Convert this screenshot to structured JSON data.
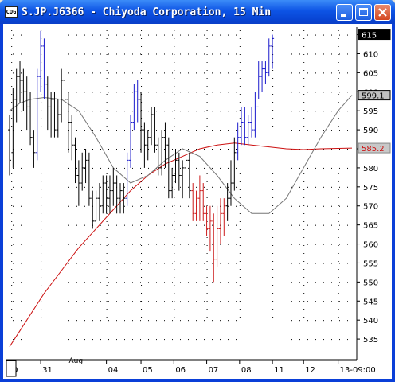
{
  "window": {
    "title": "S.JP.J6366 - Chiyoda Corporation, 15 Min",
    "icon_text": "CQG"
  },
  "colors": {
    "up_bars": "#1a1acc",
    "down_bars": "#cc1a1a",
    "neutral_bars": "#000000",
    "long_ma": "#cc1010",
    "short_ma": "#777777",
    "price_tag_bg": "#000000"
  },
  "chart_data": {
    "type": "line",
    "title": "",
    "xlabel": "",
    "ylabel": "",
    "ylim": [
      530,
      617
    ],
    "grid": true,
    "y_ticks": [
      535,
      540,
      545,
      550,
      555,
      560,
      565,
      570,
      575,
      580,
      585,
      590,
      595,
      600,
      605,
      610,
      615
    ],
    "x_ticks": [
      "0",
      "31",
      "04",
      "05",
      "06",
      "07",
      "08",
      "11",
      "12",
      "13-09:00"
    ],
    "x_tick_pos": [
      0.5,
      9,
      28,
      38,
      47.5,
      57,
      66.5,
      76,
      85,
      95
    ],
    "month_label": {
      "text": "Aug",
      "x": 19
    },
    "n_bars": 100,
    "price_tags": [
      {
        "label": "615",
        "value": 615,
        "style": "dark"
      },
      {
        "label": "599.1",
        "value": 599.1,
        "style": "gray"
      },
      {
        "label": "585.2",
        "value": 585.2,
        "style": "red"
      }
    ],
    "series": [
      {
        "name": "",
        "type": "ohlc",
        "values": [
          [
            0,
            590,
            588,
            594,
            578,
            582
          ],
          [
            1,
            584,
            582,
            601,
            580,
            598
          ],
          [
            2,
            598,
            594,
            606,
            592,
            604
          ],
          [
            3,
            604,
            600,
            608,
            597,
            603
          ],
          [
            4,
            603,
            599,
            606,
            595,
            600
          ],
          [
            5,
            600,
            594,
            604,
            590,
            596
          ],
          [
            6,
            596,
            590,
            600,
            586,
            588
          ],
          [
            7,
            588,
            582,
            590,
            580,
            584
          ],
          [
            8,
            584,
            590,
            606,
            582,
            604
          ],
          [
            9,
            604,
            604,
            616,
            600,
            612
          ],
          [
            10,
            612,
            600,
            614,
            598,
            602
          ],
          [
            11,
            602,
            592,
            604,
            590,
            596
          ],
          [
            12,
            596,
            592,
            600,
            588,
            598
          ],
          [
            13,
            598,
            592,
            600,
            588,
            590
          ],
          [
            14,
            590,
            592,
            598,
            588,
            594
          ],
          [
            15,
            594,
            596,
            606,
            592,
            603
          ],
          [
            16,
            603,
            596,
            606,
            592,
            598
          ],
          [
            17,
            598,
            590,
            600,
            584,
            592
          ],
          [
            18,
            592,
            588,
            594,
            582,
            586
          ],
          [
            19,
            586,
            580,
            588,
            576,
            578
          ],
          [
            20,
            578,
            574,
            582,
            570,
            576
          ],
          [
            21,
            576,
            578,
            584,
            574,
            580
          ],
          [
            22,
            580,
            580,
            585,
            576,
            582
          ],
          [
            23,
            582,
            574,
            584,
            570,
            572
          ],
          [
            24,
            572,
            568,
            574,
            564,
            566
          ],
          [
            25,
            566,
            570,
            574,
            566,
            572
          ],
          [
            26,
            572,
            568,
            576,
            566,
            570
          ],
          [
            27,
            570,
            574,
            578,
            568,
            576
          ],
          [
            28,
            576,
            570,
            578,
            568,
            572
          ],
          [
            29,
            572,
            572,
            578,
            568,
            574
          ],
          [
            30,
            574,
            574,
            580,
            570,
            576
          ],
          [
            31,
            576,
            570,
            578,
            568,
            572
          ],
          [
            32,
            572,
            572,
            576,
            568,
            574
          ],
          [
            33,
            574,
            570,
            576,
            568,
            572
          ],
          [
            34,
            572,
            574,
            584,
            570,
            582
          ],
          [
            35,
            582,
            588,
            594,
            580,
            592
          ],
          [
            36,
            592,
            594,
            602,
            590,
            600
          ],
          [
            37,
            600,
            596,
            603,
            592,
            598
          ],
          [
            38,
            598,
            588,
            600,
            584,
            590
          ],
          [
            39,
            590,
            584,
            592,
            580,
            586
          ],
          [
            40,
            586,
            586,
            590,
            582,
            588
          ],
          [
            41,
            588,
            590,
            596,
            586,
            594
          ],
          [
            42,
            594,
            588,
            596,
            584,
            586
          ],
          [
            43,
            586,
            582,
            588,
            578,
            580
          ],
          [
            44,
            580,
            582,
            590,
            578,
            588
          ],
          [
            45,
            588,
            584,
            592,
            580,
            586
          ],
          [
            46,
            586,
            578,
            588,
            572,
            574
          ],
          [
            47,
            574,
            576,
            580,
            572,
            578
          ],
          [
            48,
            578,
            578,
            585,
            576,
            582
          ],
          [
            49,
            582,
            576,
            584,
            574,
            578
          ],
          [
            50,
            578,
            576,
            582,
            572,
            580
          ],
          [
            51,
            580,
            578,
            584,
            576,
            582
          ],
          [
            52,
            582,
            576,
            584,
            572,
            574
          ],
          [
            53,
            574,
            570,
            576,
            566,
            568
          ],
          [
            54,
            568,
            568,
            574,
            566,
            572
          ],
          [
            55,
            572,
            570,
            578,
            566,
            574
          ],
          [
            56,
            574,
            570,
            576,
            566,
            568
          ],
          [
            57,
            568,
            566,
            570,
            562,
            564
          ],
          [
            58,
            564,
            562,
            570,
            558,
            566
          ],
          [
            59,
            566,
            560,
            568,
            550,
            556
          ],
          [
            60,
            556,
            562,
            570,
            554,
            564
          ],
          [
            61,
            564,
            566,
            572,
            560,
            568
          ],
          [
            62,
            568,
            566,
            572,
            562,
            570
          ],
          [
            63,
            570,
            568,
            576,
            566,
            572
          ],
          [
            64,
            572,
            574,
            582,
            570,
            576
          ],
          [
            65,
            576,
            578,
            588,
            574,
            584
          ],
          [
            66,
            584,
            586,
            592,
            582,
            588
          ],
          [
            67,
            588,
            590,
            596,
            586,
            592
          ],
          [
            68,
            592,
            590,
            596,
            586,
            588
          ],
          [
            69,
            588,
            590,
            594,
            586,
            592
          ],
          [
            70,
            592,
            590,
            596,
            588,
            590
          ],
          [
            71,
            590,
            592,
            600,
            588,
            596
          ],
          [
            72,
            596,
            600,
            608,
            598,
            604
          ],
          [
            73,
            604,
            602,
            608,
            600,
            606
          ],
          [
            74,
            606,
            604,
            608,
            602,
            605
          ],
          [
            75,
            605,
            608,
            614,
            604,
            612
          ],
          [
            76,
            612,
            610,
            615,
            606,
            614
          ]
        ]
      },
      {
        "name": "",
        "type": "line",
        "color": "long_ma",
        "x": [
          0,
          5,
          10,
          15,
          20,
          25,
          30,
          35,
          40,
          45,
          50,
          55,
          60,
          65,
          70,
          75,
          80,
          85,
          90,
          95,
          99
        ],
        "values": [
          533,
          540,
          547,
          553,
          559,
          564,
          569,
          574,
          578,
          581,
          583,
          585,
          586,
          586.5,
          586,
          585.5,
          585,
          584.8,
          585,
          585.1,
          585.2
        ]
      },
      {
        "name": "",
        "type": "line",
        "color": "short_ma",
        "x": [
          0,
          3,
          6,
          10,
          15,
          20,
          25,
          30,
          35,
          40,
          45,
          50,
          55,
          60,
          65,
          70,
          75,
          80,
          85,
          90,
          95,
          99
        ],
        "values": [
          595,
          597,
          598,
          598.5,
          598,
          595,
          588,
          580,
          576,
          578,
          582,
          585,
          583,
          578,
          572,
          568,
          568,
          572,
          580,
          588,
          595,
          599.1
        ]
      }
    ]
  }
}
